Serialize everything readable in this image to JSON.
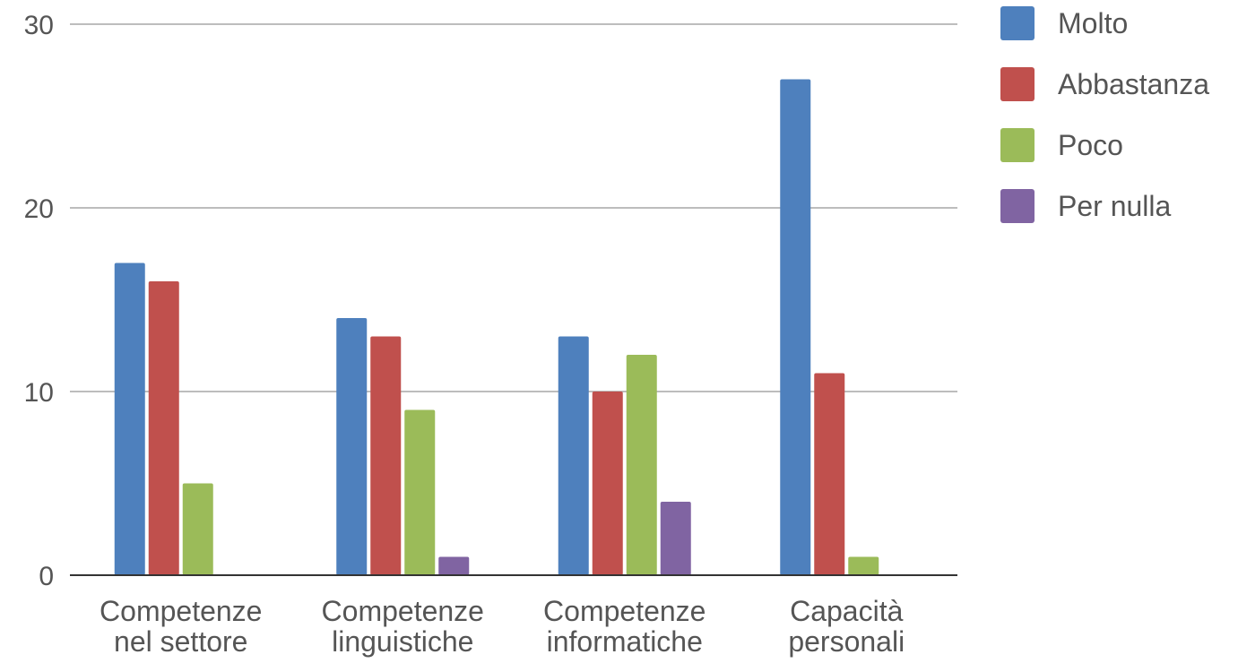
{
  "chart_data": {
    "type": "bar",
    "title": "",
    "xlabel": "",
    "ylabel": "",
    "ylim": [
      0,
      30
    ],
    "yticks": [
      0,
      10,
      20,
      30
    ],
    "grid": true,
    "legend_position": "right",
    "categories": [
      [
        "Competenze",
        "nel settore"
      ],
      [
        "Competenze",
        "linguistiche"
      ],
      [
        "Competenze",
        "informatiche"
      ],
      [
        "Capacità",
        "personali"
      ]
    ],
    "series": [
      {
        "name": "Molto",
        "color": "#4e80bd",
        "values": [
          17,
          14,
          13,
          27
        ]
      },
      {
        "name": "Abbastanza",
        "color": "#c0504d",
        "values": [
          16,
          13,
          10,
          11
        ]
      },
      {
        "name": "Poco",
        "color": "#9bbb59",
        "values": [
          5,
          9,
          12,
          1
        ]
      },
      {
        "name": "Per nulla",
        "color": "#8064a2",
        "values": [
          0,
          1,
          4,
          0
        ]
      }
    ]
  }
}
